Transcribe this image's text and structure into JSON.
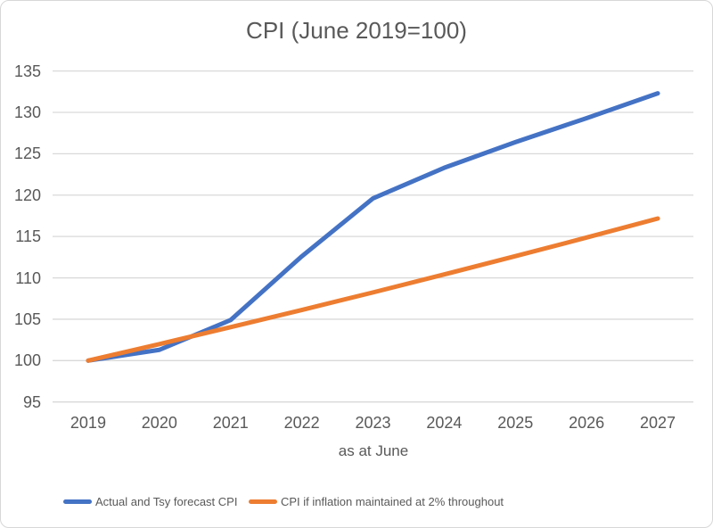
{
  "chart_data": {
    "type": "line",
    "title": "CPI (June 2019=100)",
    "xlabel": "as at June",
    "ylabel": "",
    "categories": [
      "2019",
      "2020",
      "2021",
      "2022",
      "2023",
      "2024",
      "2025",
      "2026",
      "2027"
    ],
    "series": [
      {
        "name": "Actual and Tsy forecast CPI",
        "color": "#4472C4",
        "values": [
          100,
          101.3,
          104.9,
          112.6,
          119.6,
          123.3,
          126.4,
          129.3,
          132.3
        ]
      },
      {
        "name": "CPI if inflation maintained at 2% throughout",
        "color": "#ED7D31",
        "values": [
          100,
          102,
          104.04,
          106.12,
          108.24,
          110.41,
          112.62,
          114.87,
          117.17
        ]
      }
    ],
    "ylim": [
      95,
      135
    ],
    "yticks": [
      95,
      100,
      105,
      110,
      115,
      120,
      125,
      130,
      135
    ],
    "grid": true,
    "gridline_color": "#D9D9D9",
    "text_color": "#595959",
    "legend_position": "bottom"
  },
  "legend": {
    "items": [
      {
        "label": "Actual and Tsy forecast CPI",
        "color": "#4472C4"
      },
      {
        "label": "CPI if inflation maintained at 2% throughout",
        "color": "#ED7D31"
      }
    ]
  }
}
